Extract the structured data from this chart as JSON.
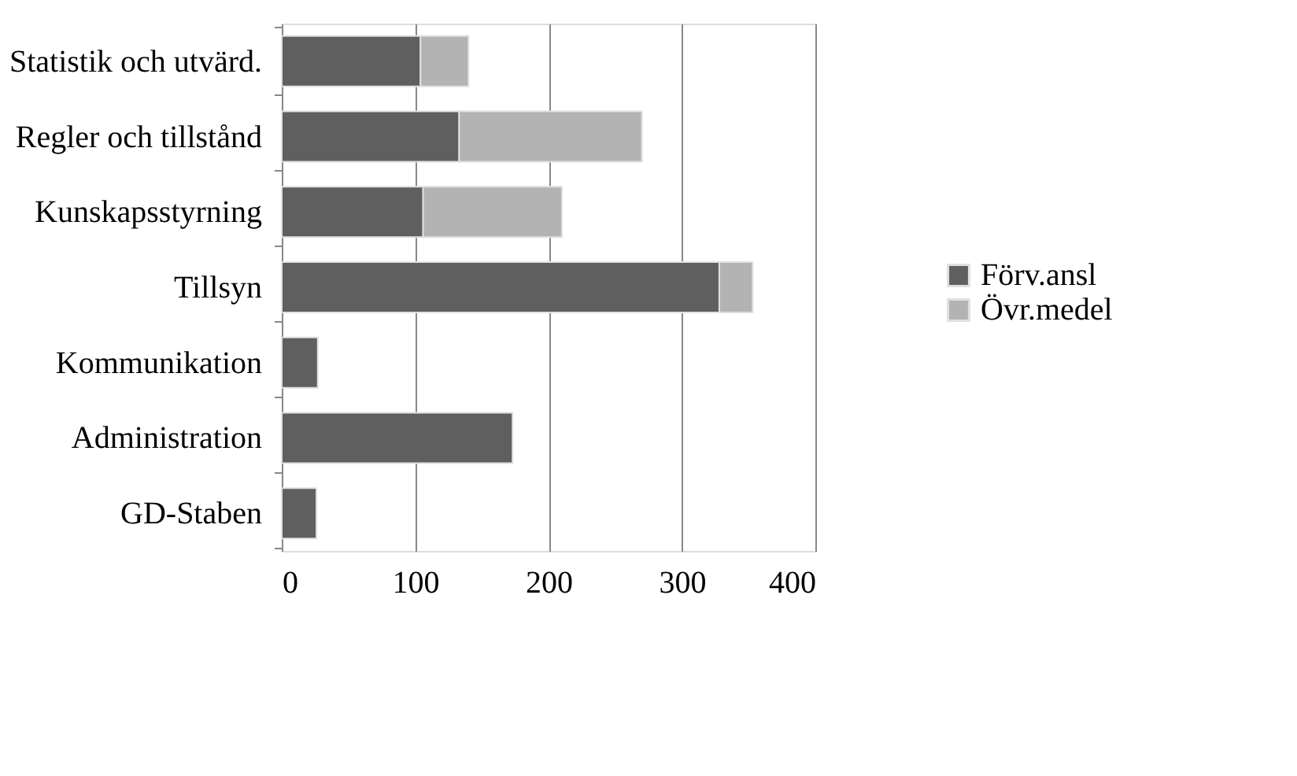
{
  "chart_data": {
    "type": "bar",
    "orientation": "horizontal",
    "stacked": true,
    "categories": [
      "Statistik och utvärd.",
      "Regler och tillstånd",
      "Kunskapsstyrning",
      "Tillsyn",
      "Kommunikation",
      "Administration",
      "GD-Staben"
    ],
    "series": [
      {
        "name": "Förv.ansl",
        "color": "#5f5f5f",
        "values": [
          104,
          133,
          106,
          328,
          27,
          173,
          26
        ]
      },
      {
        "name": "Övr.medel",
        "color": "#b3b3b3",
        "values": [
          36,
          137,
          104,
          25,
          null,
          null,
          null
        ]
      }
    ],
    "xlim": [
      0,
      400
    ],
    "xticks": [
      0,
      100,
      200,
      300,
      400
    ],
    "grid": "x",
    "legend": "right"
  }
}
